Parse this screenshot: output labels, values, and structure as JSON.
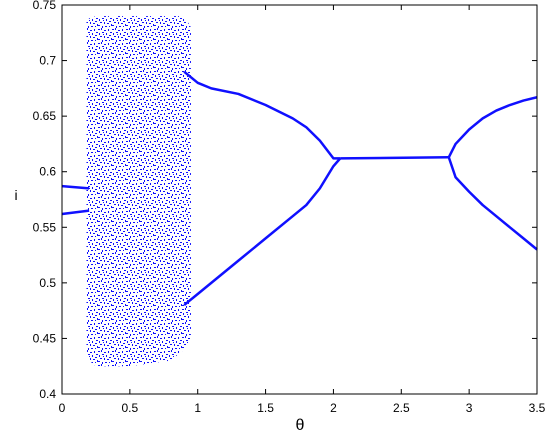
{
  "chart_data": {
    "type": "bifurcation",
    "xlabel": "θ",
    "ylabel": "i",
    "xlim": [
      0,
      3.5
    ],
    "ylim": [
      0.4,
      0.75
    ],
    "xticks": [
      0,
      0.5,
      1,
      1.5,
      2,
      2.5,
      3,
      3.5
    ],
    "yticks": [
      0.4,
      0.45,
      0.5,
      0.55,
      0.6,
      0.65,
      0.7,
      0.75
    ],
    "color": "#1010ff",
    "band": {
      "x": [
        0.18,
        0.2,
        0.25,
        0.5,
        0.8,
        0.9,
        0.95
      ],
      "upper": [
        0.735,
        0.738,
        0.74,
        0.74,
        0.74,
        0.74,
        0.73
      ],
      "lower": [
        0.44,
        0.43,
        0.425,
        0.425,
        0.43,
        0.44,
        0.45
      ]
    },
    "series": [
      {
        "x": [
          0,
          0.2
        ],
        "values": [
          0.587,
          0.585
        ]
      },
      {
        "x": [
          0,
          0.2
        ],
        "values": [
          0.562,
          0.565
        ]
      },
      {
        "x": [
          0.9,
          1.0,
          1.1,
          1.3,
          1.5,
          1.7,
          1.8,
          1.9,
          1.95,
          2.0,
          2.05
        ],
        "values": [
          0.69,
          0.68,
          0.675,
          0.67,
          0.66,
          0.648,
          0.64,
          0.628,
          0.62,
          0.612,
          0.612
        ]
      },
      {
        "x": [
          0.9,
          1.0,
          1.1,
          1.3,
          1.5,
          1.7,
          1.8,
          1.9,
          1.95,
          2.0,
          2.05
        ],
        "values": [
          0.48,
          0.49,
          0.5,
          0.52,
          0.54,
          0.56,
          0.57,
          0.585,
          0.595,
          0.605,
          0.612
        ]
      },
      {
        "x": [
          2.05,
          2.85
        ],
        "values": [
          0.612,
          0.613
        ]
      },
      {
        "x": [
          2.85,
          2.9,
          3.0,
          3.1,
          3.2,
          3.3,
          3.4,
          3.5
        ],
        "values": [
          0.613,
          0.625,
          0.638,
          0.648,
          0.655,
          0.66,
          0.664,
          0.667
        ]
      },
      {
        "x": [
          2.85,
          2.9,
          3.0,
          3.1,
          3.2,
          3.3,
          3.4,
          3.5
        ],
        "values": [
          0.613,
          0.595,
          0.582,
          0.57,
          0.56,
          0.55,
          0.54,
          0.53
        ]
      }
    ]
  }
}
